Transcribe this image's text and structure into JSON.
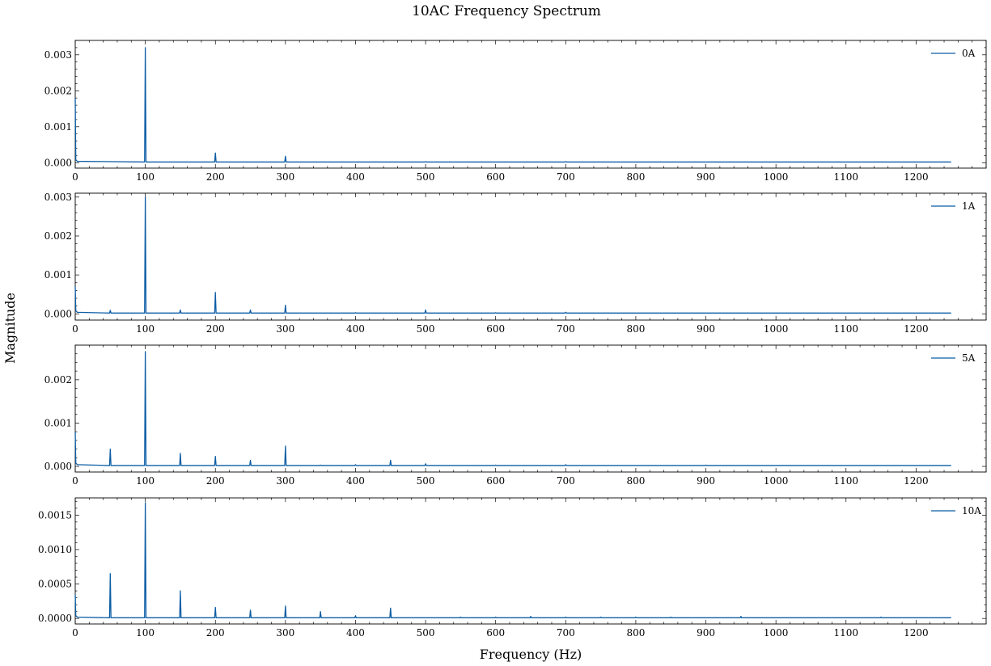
{
  "figure": {
    "title": "10AC Frequency Spectrum",
    "xlabel": "Frequency (Hz)",
    "ylabel": "Magnitude",
    "line_color": "#0c5da5"
  },
  "chart_data": [
    {
      "type": "line",
      "legend": "0A",
      "legend_position": "top-right",
      "xlim": [
        0,
        1300
      ],
      "ylim": [
        -0.00015,
        0.0034
      ],
      "x_ticks": [
        0,
        100,
        200,
        300,
        400,
        500,
        600,
        700,
        800,
        900,
        1000,
        1100,
        1200
      ],
      "y_ticks": [
        0.0,
        0.001,
        0.002,
        0.003
      ],
      "y_tick_labels": [
        "0.000",
        "0.001",
        "0.002",
        "0.003"
      ],
      "x_max": 1250,
      "baseline": 2e-05,
      "low_freq_start": 0.0018,
      "peaks": [
        {
          "x": 100,
          "y": 0.0032
        },
        {
          "x": 200,
          "y": 0.00027
        },
        {
          "x": 300,
          "y": 0.00018
        },
        {
          "x": 500,
          "y": 3e-05
        },
        {
          "x": 700,
          "y": 3e-05
        }
      ]
    },
    {
      "type": "line",
      "legend": "1A",
      "legend_position": "top-right",
      "xlim": [
        0,
        1300
      ],
      "ylim": [
        -0.00016,
        0.0031
      ],
      "x_ticks": [
        0,
        100,
        200,
        300,
        400,
        500,
        600,
        700,
        800,
        900,
        1000,
        1100,
        1200
      ],
      "y_ticks": [
        0.0,
        0.001,
        0.002,
        0.003
      ],
      "y_tick_labels": [
        "0.000",
        "0.001",
        "0.002",
        "0.003"
      ],
      "x_max": 1250,
      "baseline": 2e-05,
      "low_freq_start": 0.0007,
      "peaks": [
        {
          "x": 50,
          "y": 9e-05
        },
        {
          "x": 100,
          "y": 0.003
        },
        {
          "x": 150,
          "y": 0.0001
        },
        {
          "x": 200,
          "y": 0.00055
        },
        {
          "x": 250,
          "y": 0.0001
        },
        {
          "x": 300,
          "y": 0.00022
        },
        {
          "x": 400,
          "y": 3e-05
        },
        {
          "x": 450,
          "y": 2e-05
        },
        {
          "x": 500,
          "y": 0.0001
        },
        {
          "x": 600,
          "y": 3e-05
        },
        {
          "x": 700,
          "y": 4e-05
        },
        {
          "x": 900,
          "y": 2e-05
        }
      ]
    },
    {
      "type": "line",
      "legend": "5A",
      "legend_position": "top-right",
      "xlim": [
        0,
        1300
      ],
      "ylim": [
        -0.00013,
        0.0028
      ],
      "x_ticks": [
        0,
        100,
        200,
        300,
        400,
        500,
        600,
        700,
        800,
        900,
        1000,
        1100,
        1200
      ],
      "y_ticks": [
        0.0,
        0.001,
        0.002
      ],
      "y_tick_labels": [
        "0.000",
        "0.001",
        "0.002"
      ],
      "x_max": 1250,
      "baseline": 2e-05,
      "low_freq_start": 0.0008,
      "peaks": [
        {
          "x": 50,
          "y": 0.0004
        },
        {
          "x": 100,
          "y": 0.00265
        },
        {
          "x": 150,
          "y": 0.0003
        },
        {
          "x": 200,
          "y": 0.00023
        },
        {
          "x": 250,
          "y": 0.00014
        },
        {
          "x": 300,
          "y": 0.00047
        },
        {
          "x": 350,
          "y": 3e-05
        },
        {
          "x": 400,
          "y": 4e-05
        },
        {
          "x": 450,
          "y": 0.00014
        },
        {
          "x": 500,
          "y": 6e-05
        },
        {
          "x": 600,
          "y": 3e-05
        },
        {
          "x": 700,
          "y": 4e-05
        },
        {
          "x": 900,
          "y": 3e-05
        }
      ]
    },
    {
      "type": "line",
      "legend": "10A",
      "legend_position": "top-right",
      "xlim": [
        0,
        1300
      ],
      "ylim": [
        -8e-05,
        0.00175
      ],
      "x_ticks": [
        0,
        100,
        200,
        300,
        400,
        500,
        600,
        700,
        800,
        900,
        1000,
        1100,
        1200
      ],
      "y_ticks": [
        0.0,
        0.0005,
        0.001,
        0.0015
      ],
      "y_tick_labels": [
        "0.0000",
        "0.0005",
        "0.0010",
        "0.0015"
      ],
      "x_max": 1250,
      "baseline": 1e-05,
      "low_freq_start": 0.00035,
      "peaks": [
        {
          "x": 50,
          "y": 0.00065
        },
        {
          "x": 100,
          "y": 0.00168
        },
        {
          "x": 150,
          "y": 0.0004
        },
        {
          "x": 200,
          "y": 0.00016
        },
        {
          "x": 250,
          "y": 0.00012
        },
        {
          "x": 300,
          "y": 0.00018
        },
        {
          "x": 350,
          "y": 0.0001
        },
        {
          "x": 400,
          "y": 4e-05
        },
        {
          "x": 450,
          "y": 0.00015
        },
        {
          "x": 550,
          "y": 2e-05
        },
        {
          "x": 600,
          "y": 2e-05
        },
        {
          "x": 650,
          "y": 3e-05
        },
        {
          "x": 700,
          "y": 2e-05
        },
        {
          "x": 750,
          "y": 2e-05
        },
        {
          "x": 800,
          "y": 2e-05
        },
        {
          "x": 850,
          "y": 2e-05
        },
        {
          "x": 950,
          "y": 3e-05
        },
        {
          "x": 1150,
          "y": 2e-05
        }
      ]
    }
  ]
}
